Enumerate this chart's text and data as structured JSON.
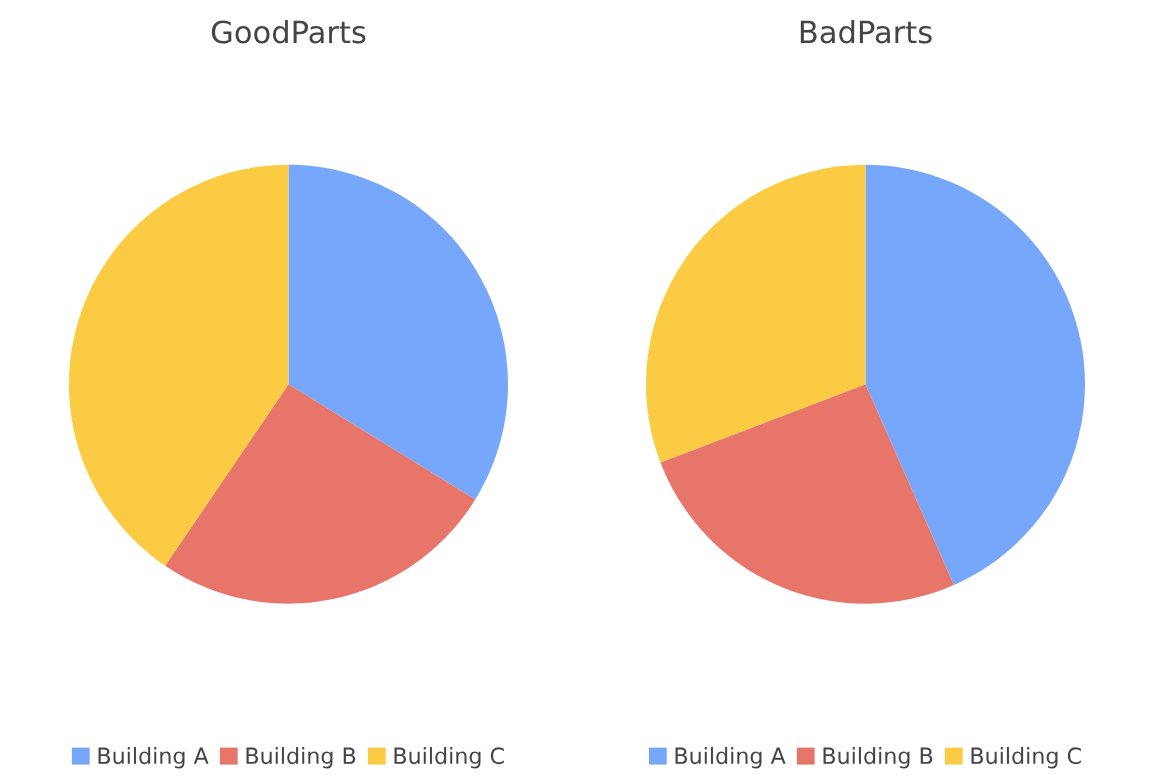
{
  "chart_data": [
    {
      "type": "pie",
      "title": "GoodParts",
      "categories": [
        "Building A",
        "Building B",
        "Building C"
      ],
      "values": [
        33.8,
        25.7,
        40.5
      ],
      "colors": [
        "#76a7fa",
        "#e8756a",
        "#fbcb43"
      ],
      "legend": "bottom"
    },
    {
      "type": "pie",
      "title": "BadParts",
      "categories": [
        "Building A",
        "Building B",
        "Building C"
      ],
      "values": [
        43.4,
        25.8,
        30.8
      ],
      "colors": [
        "#76a7fa",
        "#e8756a",
        "#fbcb43"
      ],
      "legend": "bottom"
    }
  ]
}
